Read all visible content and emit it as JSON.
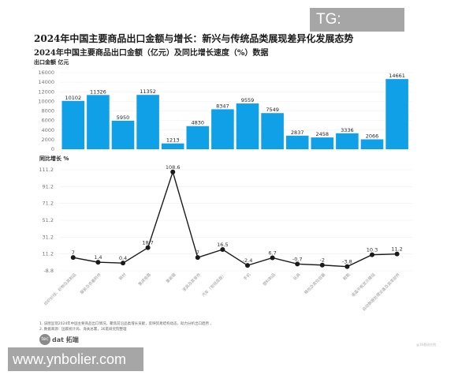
{
  "header": {
    "title": "2024年中国主要商品出口金额与增长：新兴与传统品类展现差异化发展态势",
    "subtitle": "2024年中国主要商品出口金额（亿元）及同比增长速度（%）数据"
  },
  "watermarks": {
    "top_right": "TG: MYYJJPP",
    "bottom_left": "www.ynbolier.com"
  },
  "footer": {
    "notes": [
      "1. 该图呈现2024年中国主要商品出口情况，聚焦前沿品类增长贡献，反映贸易结构动态，助力分析出口趋势 。",
      "2. 数据来源：国家统计局、海关总署，36氪研究院整理"
    ],
    "logo_mark": "tec",
    "logo_text": "dat 拓端",
    "source_mark": "@36氪研究院"
  },
  "chart_data": [
    {
      "type": "bar",
      "title": "2024年中国主要商品出口金额（亿元）",
      "ylabel": "出口金额 亿元",
      "xlabel": "",
      "ylim": [
        0,
        16000
      ],
      "yticks": [
        0,
        2000,
        4000,
        6000,
        8000,
        10000,
        12000,
        14000,
        16000
      ],
      "grid": true,
      "color": "#10a0e8",
      "categories": [
        "纺织纱线、织物及其制品",
        "服装及衣着附件",
        "钢材",
        "集成电路",
        "集装箱",
        "家具及其零件",
        "汽车（包括底盘）",
        "手机",
        "塑料制品",
        "玩具",
        "箱包及类似容器",
        "鞋靴",
        "液晶平板显示模组",
        "自动数据处理设备及其零部件"
      ],
      "values": [
        10102,
        11326,
        5950,
        11352,
        1213,
        4830,
        8347,
        9559,
        7549,
        2837,
        2458,
        3336,
        2066,
        14661
      ]
    },
    {
      "type": "line",
      "title": "同比增长速度（%）",
      "ylabel": "同比增长 %",
      "xlabel": "",
      "ylim": [
        -8.8,
        111.2
      ],
      "yticks": [
        -8.8,
        11.2,
        31.2,
        51.2,
        71.2,
        91.2,
        111.2
      ],
      "grid": true,
      "color": "#1a1a1a",
      "categories": [
        "纺织纱线、织物及其制品",
        "服装及衣着附件",
        "钢材",
        "集成电路",
        "集装箱",
        "家具及其零件",
        "汽车（包括底盘）",
        "手机",
        "塑料制品",
        "玩具",
        "箱包及类似容器",
        "鞋靴",
        "液晶平板显示模组",
        "自动数据处理设备及其零部件"
      ],
      "values": [
        7,
        1.4,
        0.4,
        18.7,
        108.6,
        7,
        16.5,
        -2.4,
        6.7,
        -0.7,
        -2,
        -3.8,
        10.3,
        11.2
      ]
    }
  ]
}
